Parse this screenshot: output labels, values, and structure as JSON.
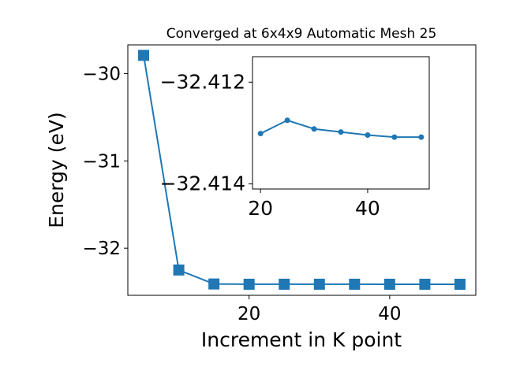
{
  "chart_data": {
    "type": "line",
    "title": "Converged at 6x4x9 Automatic Mesh 25",
    "xlabel": "Increment in K point",
    "ylabel": "Energy (eV)",
    "color": "#1f77b4",
    "marker": "square",
    "grid": false,
    "xlim": [
      2.75,
      52.25
    ],
    "ylim": [
      -32.54,
      -29.67
    ],
    "xticks": [
      20,
      40
    ],
    "yticks": [
      -32,
      -31,
      -30
    ],
    "ytick_labels": [
      "−32",
      "−31",
      "−30"
    ],
    "series": [
      {
        "x": [
          5,
          10,
          15,
          20,
          25,
          30,
          35,
          40,
          45,
          50
        ],
        "y": [
          -29.79,
          -32.25,
          -32.41,
          -32.413,
          -32.4127,
          -32.4129,
          -32.413,
          -32.4131,
          -32.4132,
          -32.4132
        ]
      }
    ],
    "inset": {
      "type": "line",
      "marker": "circle",
      "color": "#1f77b4",
      "xlim": [
        18.5,
        51.5
      ],
      "ylim": [
        -32.4141,
        -32.4115
      ],
      "xticks": [
        20,
        40
      ],
      "yticks": [
        -32.414,
        -32.412
      ],
      "ytick_labels": [
        "−32.414",
        "−32.412"
      ],
      "series": [
        {
          "x": [
            20,
            25,
            30,
            35,
            40,
            45,
            50
          ],
          "y": [
            -32.41301,
            -32.41275,
            -32.41292,
            -32.41298,
            -32.41304,
            -32.41308,
            -32.41308
          ]
        }
      ]
    }
  }
}
